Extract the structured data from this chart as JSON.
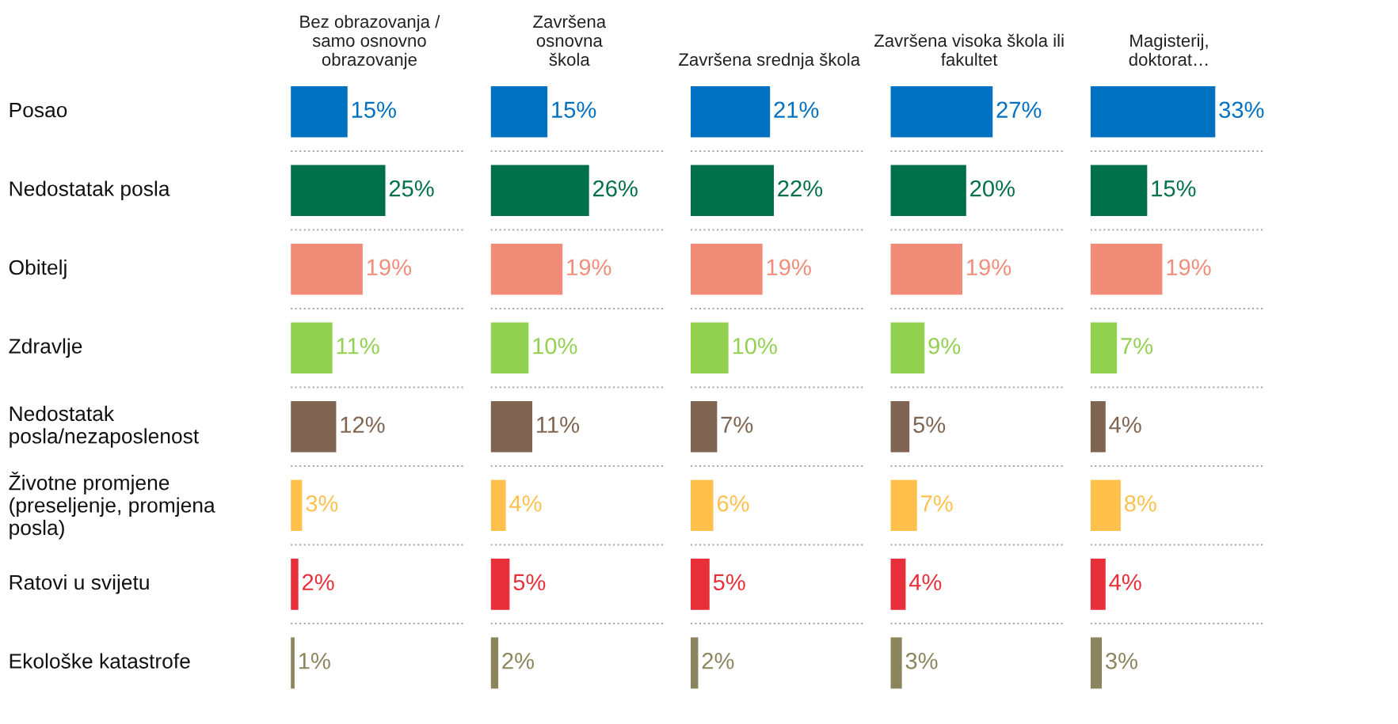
{
  "chart_data": [
    {
      "type": "bar",
      "orientation": "horizontal",
      "title": "Bez obrazovanja /\nsamo osnovno\nobrazovanje",
      "categories": [
        "Posao",
        "Nedostatak posla",
        "Obitelj",
        "Zdravlje",
        "Nedostatak\nposla/nezaposlenost",
        "Životne promjene\n(preseljenje, promjena\nposla)",
        "Ratovi u svijetu",
        "Ekološke katastrofe"
      ],
      "values": [
        15,
        25,
        19,
        11,
        12,
        3,
        2,
        1
      ],
      "value_labels": [
        "15%",
        "25%",
        "19%",
        "11%",
        "12%",
        "3%",
        "2%",
        "1%"
      ],
      "colors": [
        "#0070c0",
        "#00704a",
        "#f08c78",
        "#92d050",
        "#7f6451",
        "#ffc04c",
        "#e8303a",
        "#8b845c"
      ],
      "grid": "y",
      "tick_labels": "y"
    },
    {
      "type": "bar",
      "orientation": "horizontal",
      "title": "Završena\nosnovna\nškola",
      "categories": [
        null,
        null,
        null,
        null,
        null,
        null,
        null,
        null
      ],
      "values": [
        15,
        26,
        19,
        10,
        11,
        4,
        5,
        2
      ],
      "value_labels": [
        "15%",
        "26%",
        "19%",
        "10%",
        "11%",
        "4%",
        "5%",
        "2%"
      ],
      "colors": [
        "#0070c0",
        "#00704a",
        "#f08c78",
        "#92d050",
        "#7f6451",
        "#ffc04c",
        "#e8303a",
        "#8b845c"
      ],
      "grid": "y",
      "tick_labels": false
    },
    {
      "type": "bar",
      "orientation": "horizontal",
      "title": "Završena srednja škola",
      "categories": [
        null,
        null,
        null,
        null,
        null,
        null,
        null,
        null
      ],
      "values": [
        21,
        22,
        19,
        10,
        7,
        6,
        5,
        2
      ],
      "value_labels": [
        "21%",
        "22%",
        "19%",
        "10%",
        "7%",
        "6%",
        "5%",
        "2%"
      ],
      "colors": [
        "#0070c0",
        "#00704a",
        "#f08c78",
        "#92d050",
        "#7f6451",
        "#ffc04c",
        "#e8303a",
        "#8b845c"
      ],
      "grid": "y",
      "tick_labels": false
    },
    {
      "type": "bar",
      "orientation": "horizontal",
      "title": "Završena visoka škola ili\nfakultet",
      "categories": [
        null,
        null,
        null,
        null,
        null,
        null,
        null,
        null
      ],
      "values": [
        27,
        20,
        19,
        9,
        5,
        7,
        4,
        3
      ],
      "value_labels": [
        "27%",
        "20%",
        "19%",
        "9%",
        "5%",
        "7%",
        "4%",
        "3%"
      ],
      "colors": [
        "#0070c0",
        "#00704a",
        "#f08c78",
        "#92d050",
        "#7f6451",
        "#ffc04c",
        "#e8303a",
        "#8b845c"
      ],
      "grid": "y",
      "tick_labels": false
    },
    {
      "type": "bar",
      "orientation": "horizontal",
      "title": "Magisterij,\ndoktorat…",
      "categories": [
        null,
        null,
        null,
        null,
        null,
        null,
        null,
        null
      ],
      "values": [
        33,
        15,
        19,
        7,
        4,
        8,
        4,
        3
      ],
      "value_labels": [
        "33%",
        "15%",
        "19%",
        "7%",
        "4%",
        "8%",
        "4%",
        "3%"
      ],
      "colors": [
        "#0070c0",
        "#00704a",
        "#f08c78",
        "#92d050",
        "#7f6451",
        "#ffc04c",
        "#e8303a",
        "#8b845c"
      ],
      "grid": "y",
      "tick_labels": false
    }
  ]
}
